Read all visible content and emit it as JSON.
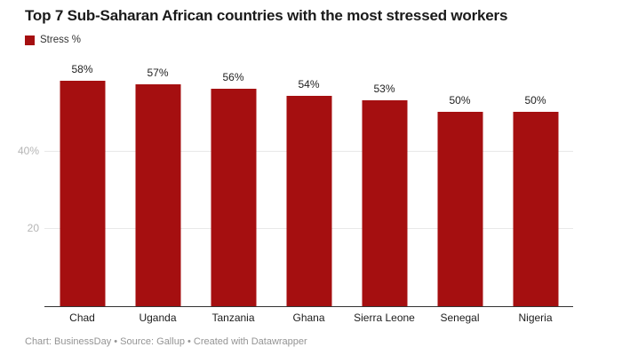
{
  "title": "Top 7 Sub-Saharan African countries with the most stressed workers",
  "legend": {
    "label": "Stress %",
    "swatch_color": "#a50f10"
  },
  "footer": "Chart: BusinessDay • Source: Gallup • Created with Datawrapper",
  "colors": {
    "bar": "#a50f10",
    "gridline": "#e8e8e8",
    "axis_line": "#333333",
    "y_tick_label": "#b5b5b5",
    "x_label": "#1d1d1d",
    "value_label": "#222222",
    "footer_text": "#949494",
    "title_text": "#1a1a1a"
  },
  "chart_data": {
    "type": "bar",
    "title": "Top 7 Sub-Saharan African countries with the most stressed workers",
    "series_name": "Stress %",
    "categories": [
      "Chad",
      "Uganda",
      "Tanzania",
      "Ghana",
      "Sierra Leone",
      "Senegal",
      "Nigeria"
    ],
    "values": [
      58,
      57,
      56,
      54,
      53,
      50,
      50
    ],
    "value_labels": [
      "58%",
      "57%",
      "56%",
      "54%",
      "53%",
      "50%",
      "50%"
    ],
    "xlabel": "",
    "ylabel": "",
    "ylim": [
      0,
      60
    ],
    "yticks": [
      {
        "value": 20,
        "label": "20"
      },
      {
        "value": 40,
        "label": "40%"
      }
    ],
    "grid": "horizontal",
    "legend_position": "top-left",
    "bar_color": "#a50f10"
  }
}
